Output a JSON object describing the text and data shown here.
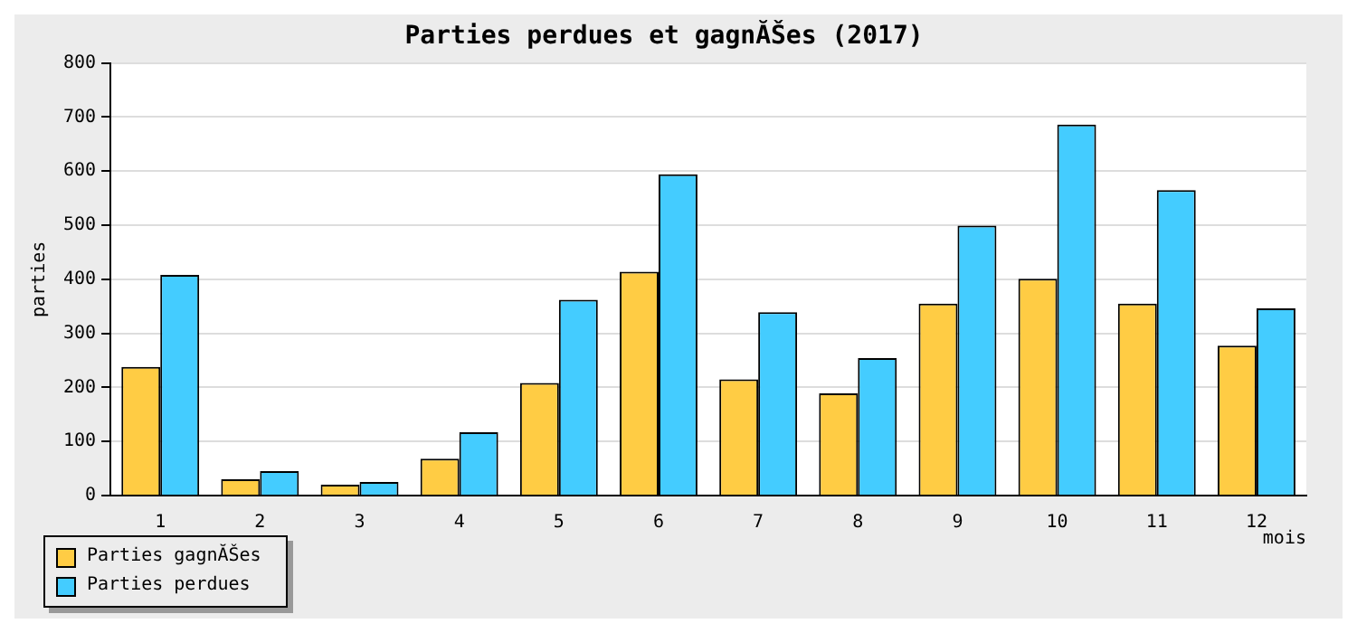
{
  "chart_data": {
    "type": "bar",
    "title": "Parties perdues et gagnĂŠes (2017)",
    "xlabel": "mois",
    "ylabel": "parties",
    "categories": [
      "1",
      "2",
      "3",
      "4",
      "5",
      "6",
      "7",
      "8",
      "9",
      "10",
      "11",
      "12"
    ],
    "series": [
      {
        "name": "Parties gagnĂŠes",
        "color": "#ffcc44",
        "values": [
          238,
          30,
          20,
          68,
          208,
          414,
          215,
          189,
          355,
          401,
          355,
          277
        ]
      },
      {
        "name": "Parties perdues",
        "color": "#44ccff",
        "values": [
          408,
          45,
          25,
          117,
          362,
          594,
          339,
          254,
          499,
          686,
          565,
          346
        ]
      }
    ],
    "ylim": [
      0,
      800
    ],
    "yticks": [
      0,
      100,
      200,
      300,
      400,
      500,
      600,
      700,
      800
    ],
    "grid": "y",
    "legend": "bottom left"
  }
}
